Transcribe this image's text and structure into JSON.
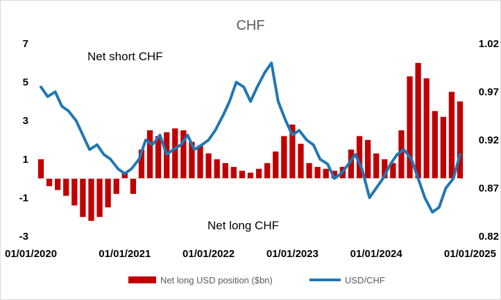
{
  "chart_data": {
    "type": "bar",
    "title": "CHF",
    "x_tick_labels": [
      "01/01/2020",
      "01/01/2021",
      "01/01/2022",
      "01/01/2023",
      "01/01/2024",
      "01/01/2025"
    ],
    "y_left": {
      "ticks": [
        "7",
        "5",
        "3",
        "1",
        "-1",
        "-3"
      ],
      "range": [
        -3,
        7
      ]
    },
    "y_right": {
      "ticks": [
        "1.02",
        "0.97",
        "0.92",
        "0.87",
        "0.82"
      ],
      "range": [
        0.82,
        1.02
      ]
    },
    "annotations": {
      "top": "Net short CHF",
      "bottom": "Net long CHF"
    },
    "colors": {
      "bars": "#c00000",
      "line": "#1f77b4"
    },
    "legend_position": "bottom",
    "series": [
      {
        "name": "Net long USD position ($bn)",
        "type": "bar",
        "axis": "left",
        "x": [
          2020.0,
          2020.1,
          2020.2,
          2020.3,
          2020.4,
          2020.5,
          2020.6,
          2020.7,
          2020.8,
          2020.9,
          2021.0,
          2021.1,
          2021.2,
          2021.3,
          2021.4,
          2021.5,
          2021.6,
          2021.7,
          2021.8,
          2021.9,
          2022.0,
          2022.1,
          2022.2,
          2022.3,
          2022.4,
          2022.5,
          2022.6,
          2022.7,
          2022.8,
          2022.9,
          2023.0,
          2023.1,
          2023.2,
          2023.3,
          2023.4,
          2023.5,
          2023.6,
          2023.7,
          2023.8,
          2023.9,
          2024.0,
          2024.1,
          2024.2,
          2024.3,
          2024.4,
          2024.5,
          2024.6,
          2024.7,
          2024.8,
          2024.9,
          2025.0
        ],
        "values": [
          1.0,
          -0.4,
          -0.6,
          -0.9,
          -1.4,
          -2.0,
          -2.2,
          -2.0,
          -1.5,
          -0.8,
          0.3,
          -0.8,
          1.5,
          2.5,
          2.2,
          2.4,
          2.6,
          2.5,
          1.9,
          1.7,
          1.3,
          1.0,
          0.8,
          0.6,
          0.4,
          0.3,
          0.5,
          0.8,
          1.4,
          2.2,
          2.8,
          1.8,
          0.8,
          0.6,
          0.5,
          0.4,
          0.6,
          1.5,
          2.2,
          2.0,
          1.3,
          1.0,
          0.8,
          2.5,
          5.3,
          6.0,
          5.2,
          3.5,
          3.2,
          4.5,
          4.0
        ]
      },
      {
        "name": "USD/CHF",
        "type": "line",
        "axis": "right",
        "x": [
          2020.0,
          2020.08,
          2020.17,
          2020.25,
          2020.33,
          2020.42,
          2020.5,
          2020.58,
          2020.67,
          2020.75,
          2020.83,
          2020.92,
          2021.0,
          2021.08,
          2021.17,
          2021.25,
          2021.33,
          2021.42,
          2021.5,
          2021.58,
          2021.67,
          2021.75,
          2021.83,
          2021.92,
          2022.0,
          2022.08,
          2022.17,
          2022.25,
          2022.33,
          2022.42,
          2022.5,
          2022.58,
          2022.67,
          2022.75,
          2022.83,
          2022.92,
          2023.0,
          2023.08,
          2023.17,
          2023.25,
          2023.33,
          2023.42,
          2023.5,
          2023.58,
          2023.67,
          2023.75,
          2023.83,
          2023.92,
          2024.0,
          2024.08,
          2024.17,
          2024.25,
          2024.33,
          2024.42,
          2024.5,
          2024.58,
          2024.67,
          2024.75,
          2024.83,
          2024.92,
          2025.0
        ],
        "values": [
          0.975,
          0.965,
          0.97,
          0.955,
          0.95,
          0.94,
          0.925,
          0.91,
          0.915,
          0.905,
          0.9,
          0.89,
          0.885,
          0.89,
          0.9,
          0.92,
          0.915,
          0.925,
          0.905,
          0.91,
          0.915,
          0.925,
          0.91,
          0.915,
          0.92,
          0.93,
          0.945,
          0.96,
          0.98,
          0.975,
          0.96,
          0.975,
          0.99,
          1.0,
          0.96,
          0.94,
          0.925,
          0.93,
          0.92,
          0.915,
          0.9,
          0.895,
          0.88,
          0.885,
          0.895,
          0.905,
          0.89,
          0.86,
          0.87,
          0.88,
          0.895,
          0.905,
          0.91,
          0.9,
          0.88,
          0.86,
          0.845,
          0.85,
          0.87,
          0.88,
          0.905
        ]
      }
    ]
  }
}
